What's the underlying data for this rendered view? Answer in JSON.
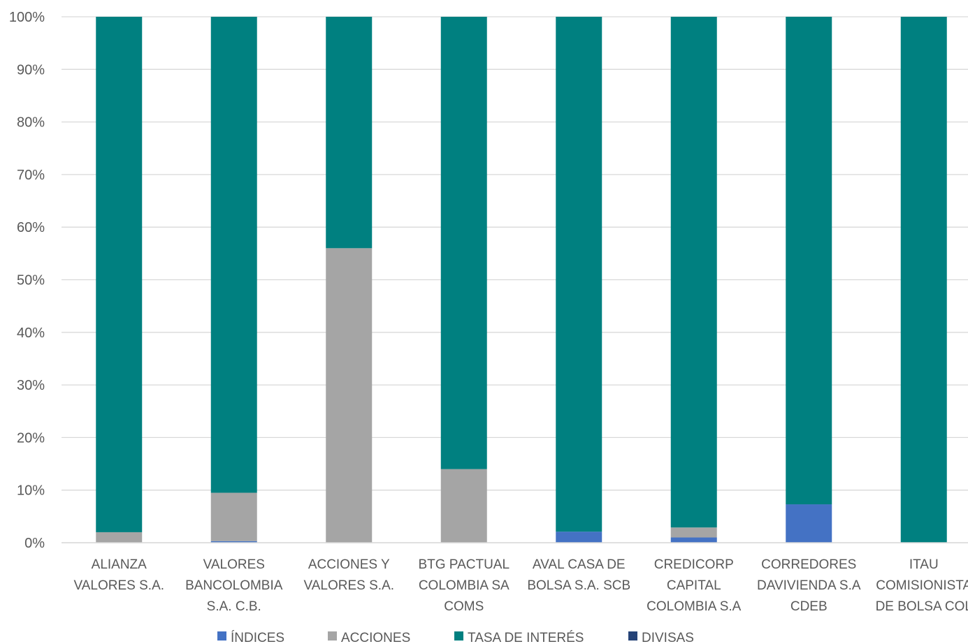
{
  "chart_data": {
    "type": "bar",
    "stacked": "percent",
    "title": "",
    "xlabel": "",
    "ylabel": "",
    "ylim": [
      0,
      100
    ],
    "y_ticks": [
      "0%",
      "10%",
      "20%",
      "30%",
      "40%",
      "50%",
      "60%",
      "70%",
      "80%",
      "90%",
      "100%"
    ],
    "grid": "horizontal",
    "legend_position": "bottom",
    "categories": [
      [
        "ALIANZA",
        "VALORES S.A."
      ],
      [
        "VALORES",
        "BANCOLOMBIA",
        "S.A. C.B."
      ],
      [
        "ACCIONES Y",
        "VALORES S.A."
      ],
      [
        "BTG PACTUAL",
        "COLOMBIA SA",
        "COMS"
      ],
      [
        "AVAL CASA DE",
        "BOLSA S.A. SCB"
      ],
      [
        "CREDICORP",
        "CAPITAL",
        "COLOMBIA S.A"
      ],
      [
        "CORREDORES",
        "DAVIVIENDA S.A",
        "CDEB"
      ],
      [
        "ITAU",
        "COMISIONISTA",
        "DE BOLSA COL"
      ]
    ],
    "series": [
      {
        "name": "ÍNDICES",
        "color": "#4472C4",
        "values": [
          0,
          0.3,
          0,
          0,
          2.1,
          1.0,
          7.3,
          0
        ]
      },
      {
        "name": "ACCIONES",
        "color": "#A5A5A5",
        "values": [
          2.0,
          9.2,
          56.0,
          14.0,
          0,
          1.9,
          0,
          0
        ]
      },
      {
        "name": "TASA DE INTERÉS",
        "color": "#008080",
        "values": [
          98.0,
          90.5,
          44.0,
          86.0,
          97.9,
          97.1,
          92.7,
          100
        ]
      },
      {
        "name": "DIVISAS",
        "color": "#264478",
        "values": [
          0,
          0,
          0,
          0,
          0,
          0,
          0,
          0
        ]
      }
    ]
  }
}
